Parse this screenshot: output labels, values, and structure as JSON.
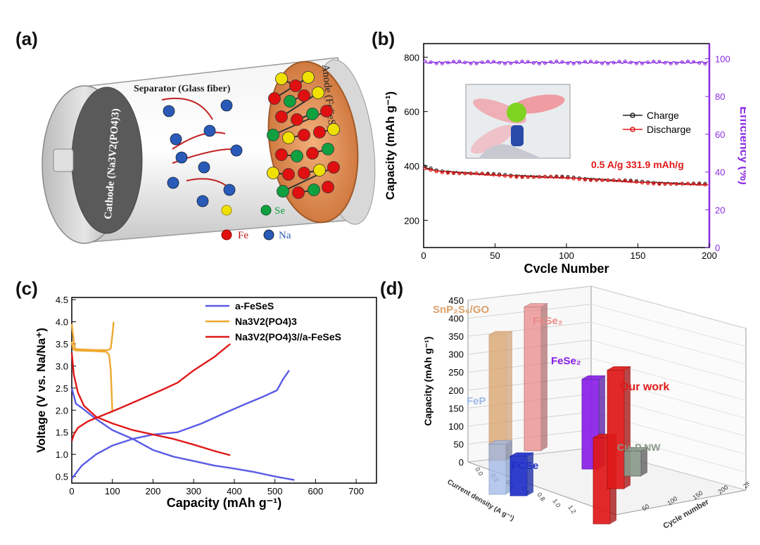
{
  "panels": {
    "a": "(a)",
    "b": "(b)",
    "c": "(c)",
    "d": "(d)"
  },
  "schematic": {
    "separator": "Separator (Glass fiber)",
    "cathode_label": "Cathode (Na3V2(PO4)3)",
    "anode_label": "Anode (FeSeS)",
    "legend": {
      "se": "Se",
      "fe": "Fe",
      "na": "Na"
    },
    "colors": {
      "fe": "#e01010",
      "se": "#10a040",
      "s": "#f0e000",
      "na": "#2a5ab8",
      "anode_disk": "#e89a5a"
    }
  },
  "chart_data": [
    {
      "id": "b",
      "type": "line",
      "xlabel": "Cycle Number",
      "ylabel": "Capacity (mAh g⁻¹)",
      "y2label": "Efficiency (%)",
      "xlim": [
        0,
        200
      ],
      "ylim": [
        100,
        850
      ],
      "y2lim": [
        0,
        108
      ],
      "x_ticks": [
        0,
        50,
        100,
        150,
        200
      ],
      "y_ticks": [
        200,
        400,
        600,
        800
      ],
      "y2_ticks": [
        0,
        20,
        40,
        60,
        80,
        100
      ],
      "annotation": "0.5 A/g 331.9 mAh/g",
      "legend_position": "right",
      "colors": {
        "charge": "#222222",
        "discharge": "#e01818",
        "efficiency": "#8a2be2"
      },
      "series": [
        {
          "name": "Charge",
          "x": [
            1,
            10,
            25,
            50,
            75,
            100,
            125,
            150,
            175,
            200
          ],
          "values": [
            395,
            382,
            376,
            368,
            362,
            358,
            350,
            342,
            336,
            332
          ]
        },
        {
          "name": "Discharge",
          "x": [
            1,
            10,
            25,
            50,
            75,
            100,
            125,
            150,
            175,
            200
          ],
          "values": [
            390,
            380,
            374,
            366,
            360,
            356,
            348,
            340,
            334,
            330
          ]
        },
        {
          "name": "",
          "axis": "right",
          "x": [
            1,
            50,
            100,
            150,
            200
          ],
          "values": [
            98,
            98,
            98,
            98,
            98
          ]
        }
      ]
    },
    {
      "id": "c",
      "type": "line",
      "xlabel": "Capacity (mAh g⁻¹)",
      "ylabel": "Voltage (V vs. Na/Na⁺)",
      "xlim": [
        0,
        750
      ],
      "ylim": [
        0.35,
        4.55
      ],
      "x_ticks": [
        0,
        100,
        200,
        300,
        400,
        500,
        600,
        700
      ],
      "y_ticks": [
        0.5,
        1.0,
        1.5,
        2.0,
        2.5,
        3.0,
        3.5,
        4.0,
        4.5
      ],
      "legend_position": "top-right",
      "colors": {
        "a-FeSeS": "#5a5ae6",
        "Na3V2(PO4)3": "#f0a830",
        "full": "#e01818"
      },
      "series": [
        {
          "name": "a-FeSeS",
          "segments": [
            {
              "x": [
                0,
                10,
                25,
                60,
                100,
                150,
                200,
                250,
                300,
                350,
                400,
                450,
                500,
                548
              ],
              "y": [
                2.5,
                2.15,
                2.05,
                1.8,
                1.55,
                1.35,
                1.1,
                0.95,
                0.85,
                0.75,
                0.68,
                0.6,
                0.5,
                0.42
              ]
            },
            {
              "x": [
                0,
                25,
                60,
                100,
                150,
                200,
                260,
                320,
                380,
                430,
                470,
                505,
                520,
                535
              ],
              "y": [
                0.45,
                0.75,
                1.0,
                1.2,
                1.35,
                1.45,
                1.5,
                1.7,
                1.95,
                2.15,
                2.3,
                2.45,
                2.7,
                2.9
              ]
            }
          ]
        },
        {
          "name": "Na3V2(PO4)3",
          "segments": [
            {
              "x": [
                0,
                3,
                6,
                8,
                10,
                60,
                90,
                96,
                100,
                103
              ],
              "y": [
                3.95,
                3.7,
                3.5,
                3.4,
                3.38,
                3.36,
                3.36,
                3.4,
                3.7,
                4.0
              ]
            },
            {
              "x": [
                0,
                3,
                6,
                10,
                50,
                85,
                92,
                96,
                100
              ],
              "y": [
                3.55,
                3.4,
                3.36,
                3.35,
                3.34,
                3.32,
                3.25,
                2.9,
                1.95
              ]
            }
          ]
        },
        {
          "name": "Na3V2(PO4)3//a-FeSeS",
          "segments": [
            {
              "x": [
                0,
                5,
                15,
                30,
                60,
                100,
                150,
                200,
                250,
                300,
                350,
                390
              ],
              "y": [
                3.3,
                2.8,
                2.4,
                2.1,
                1.85,
                1.7,
                1.55,
                1.45,
                1.35,
                1.22,
                1.08,
                0.98
              ]
            },
            {
              "x": [
                0,
                5,
                15,
                40,
                80,
                120,
                170,
                220,
                260,
                300,
                350,
                390
              ],
              "y": [
                1.3,
                1.45,
                1.6,
                1.75,
                1.9,
                2.05,
                2.25,
                2.45,
                2.62,
                2.9,
                3.2,
                3.5
              ]
            }
          ]
        }
      ]
    },
    {
      "id": "d",
      "type": "bar",
      "ylabel": "Capacity (mAh g⁻¹)",
      "xlabel": "Current density (A g⁻¹)",
      "zlabel": "Cycle number",
      "ylim": [
        0,
        450
      ],
      "y_ticks": [
        0,
        50,
        100,
        150,
        200,
        250,
        300,
        350,
        400,
        450
      ],
      "x_ticks": [
        0.0,
        0.2,
        0.4,
        0.6,
        0.8,
        1.0,
        1.2
      ],
      "z_ticks": [
        50,
        100,
        150,
        200,
        250
      ],
      "bars": [
        {
          "name": "SnP₂S₆/GO",
          "value": 350,
          "color": "#d9a06a"
        },
        {
          "name": "FeSe₂",
          "value": 400,
          "color": "#ea8a8a"
        },
        {
          "name": "FeP",
          "value": 140,
          "color": "#9fb8e6"
        },
        {
          "name": "FCSe",
          "value": 110,
          "color": "#2030c8"
        },
        {
          "name": "FeSe₂",
          "value": 250,
          "color": "#8a20e8"
        },
        {
          "name": "",
          "value": 240,
          "color": "#e01818"
        },
        {
          "name": "Our work",
          "value": 330,
          "color": "#e01818"
        },
        {
          "name": "Cu₃P NW",
          "value": 70,
          "color": "#8a9a8a"
        }
      ]
    }
  ]
}
